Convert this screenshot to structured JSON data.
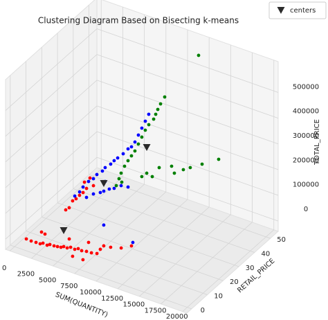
{
  "chart_data": {
    "type": "scatter3d",
    "title": "Clustering Diagram Based on Bisecting k-means",
    "xlabel": "SUM(QUANTITY)",
    "ylabel": "RETAIL_PRICE",
    "zlabel": "TOTAL_PRICE",
    "xlim": [
      -500,
      20500
    ],
    "ylim": [
      -3,
      55
    ],
    "zlim": [
      -40000,
      620000
    ],
    "xticks": [
      0,
      2500,
      5000,
      7500,
      10000,
      12500,
      15000,
      17500,
      20000
    ],
    "yticks": [
      0,
      10,
      20,
      30,
      40,
      50
    ],
    "zticks": [
      0,
      100000,
      200000,
      300000,
      400000,
      500000
    ],
    "grid": true,
    "legend": "upper right",
    "series": [
      {
        "color": "#ff0000",
        "marker": "o",
        "x": [
          1270,
          1830,
          2390,
          2870,
          3200,
          3680,
          4000,
          4480,
          4880,
          5280,
          5600,
          6000,
          6400,
          6880,
          7280,
          7680,
          8240,
          8810,
          9450,
          8760,
          9560,
          10780,
          11970,
          7920,
          6720,
          8060,
          9420,
          5820,
          2610,
          3010,
          2240,
          2640,
          3040,
          3440,
          3840,
          4250,
          4650,
          4410,
          5050,
          5450
        ],
        "y": [
          0.5,
          0.5,
          0.5,
          0.5,
          0.5,
          0.5,
          0.5,
          0.5,
          0.5,
          0.5,
          0.5,
          0.5,
          0.5,
          0.5,
          0.5,
          0.5,
          0.5,
          0.5,
          0.5,
          8.6,
          8.6,
          8.6,
          8.6,
          0,
          0,
          2.8,
          2.8,
          2.8,
          2.8,
          2.8,
          20.2,
          20.2,
          20.2,
          20.2,
          20.2,
          20.2,
          20.2,
          20.2,
          20.2,
          20.2
        ],
        "z": [
          2200,
          700,
          1900,
          2200,
          8700,
          6300,
          12800,
          13100,
          15100,
          17100,
          23600,
          23000,
          30400,
          28000,
          35400,
          32100,
          36000,
          37200,
          42100,
          19300,
          23300,
          34900,
          57000,
          2600,
          1800,
          56200,
          45400,
          43200,
          32200,
          29000,
          18700,
          31700,
          63200,
          76100,
          94200,
          109800,
          130500,
          152100,
          175800,
          150700
        ]
      },
      {
        "color": "#0000ff",
        "marker": "o",
        "x": [
          1700,
          2260,
          2660,
          3300,
          3860,
          4260,
          4900,
          5220,
          5860,
          6260,
          6670,
          7310,
          7870,
          8270,
          8670,
          9070,
          9470,
          9870,
          10270,
          3060,
          3860,
          4660,
          5060,
          5700,
          6260,
          7070,
          7870,
          5220,
          8760,
          12130
        ],
        "y": [
          28.9,
          28.9,
          28.9,
          28.9,
          28.9,
          28.9,
          28.9,
          28.9,
          28.9,
          28.9,
          28.9,
          28.9,
          28.9,
          28.9,
          28.9,
          28.9,
          28.9,
          28.9,
          28.9,
          28.9,
          28.9,
          28.9,
          28.9,
          28.9,
          28.9,
          28.9,
          28.9,
          28.9,
          8.6,
          8.6
        ],
        "z": [
          18500,
          41300,
          64900,
          94000,
          111400,
          132300,
          153400,
          170600,
          191600,
          209800,
          225300,
          249100,
          274600,
          287400,
          310900,
          342600,
          374300,
          406000,
          437600,
          29200,
          52100,
          67000,
          77100,
          92800,
          102100,
          122300,
          126400,
          116700,
          100100,
          72300
        ]
      },
      {
        "color": "#008000",
        "marker": "o",
        "x": [
          12340,
          10530,
          10050,
          9730,
          9490,
          9250,
          8690,
          8280,
          7880,
          7480,
          7080,
          6680,
          6280,
          5880,
          5480,
          5240,
          4920,
          5560,
          7880,
          8450,
          9090,
          9890,
          11330,
          11650,
          12690,
          13490,
          14860,
          16780
        ],
        "y": [
          49.2,
          37.6,
          37.6,
          37.6,
          37.6,
          37.6,
          37.6,
          37.6,
          37.6,
          37.6,
          37.6,
          37.6,
          37.6,
          37.6,
          37.6,
          37.6,
          37.6,
          37.6,
          37.6,
          37.6,
          37.6,
          37.6,
          37.6,
          37.6,
          37.6,
          37.6,
          37.6,
          37.6
        ],
        "z": [
          579900,
          460300,
          427700,
          402400,
          380700,
          359000,
          330800,
          304500,
          272900,
          241200,
          209500,
          185900,
          162300,
          136100,
          104400,
          80000,
          49300,
          70300,
          119300,
          139400,
          133500,
          178000,
          200400,
          177200,
          203000,
          220500,
          250100,
          291600
        ]
      },
      {
        "name": "centers",
        "color": "#2b2b2b",
        "marker": "v",
        "x": [
          4120,
          5060,
          8450
        ],
        "y": [
          8.6,
          28.9,
          37.6
        ],
        "z": [
          23600,
          106700,
          239100
        ]
      }
    ]
  }
}
